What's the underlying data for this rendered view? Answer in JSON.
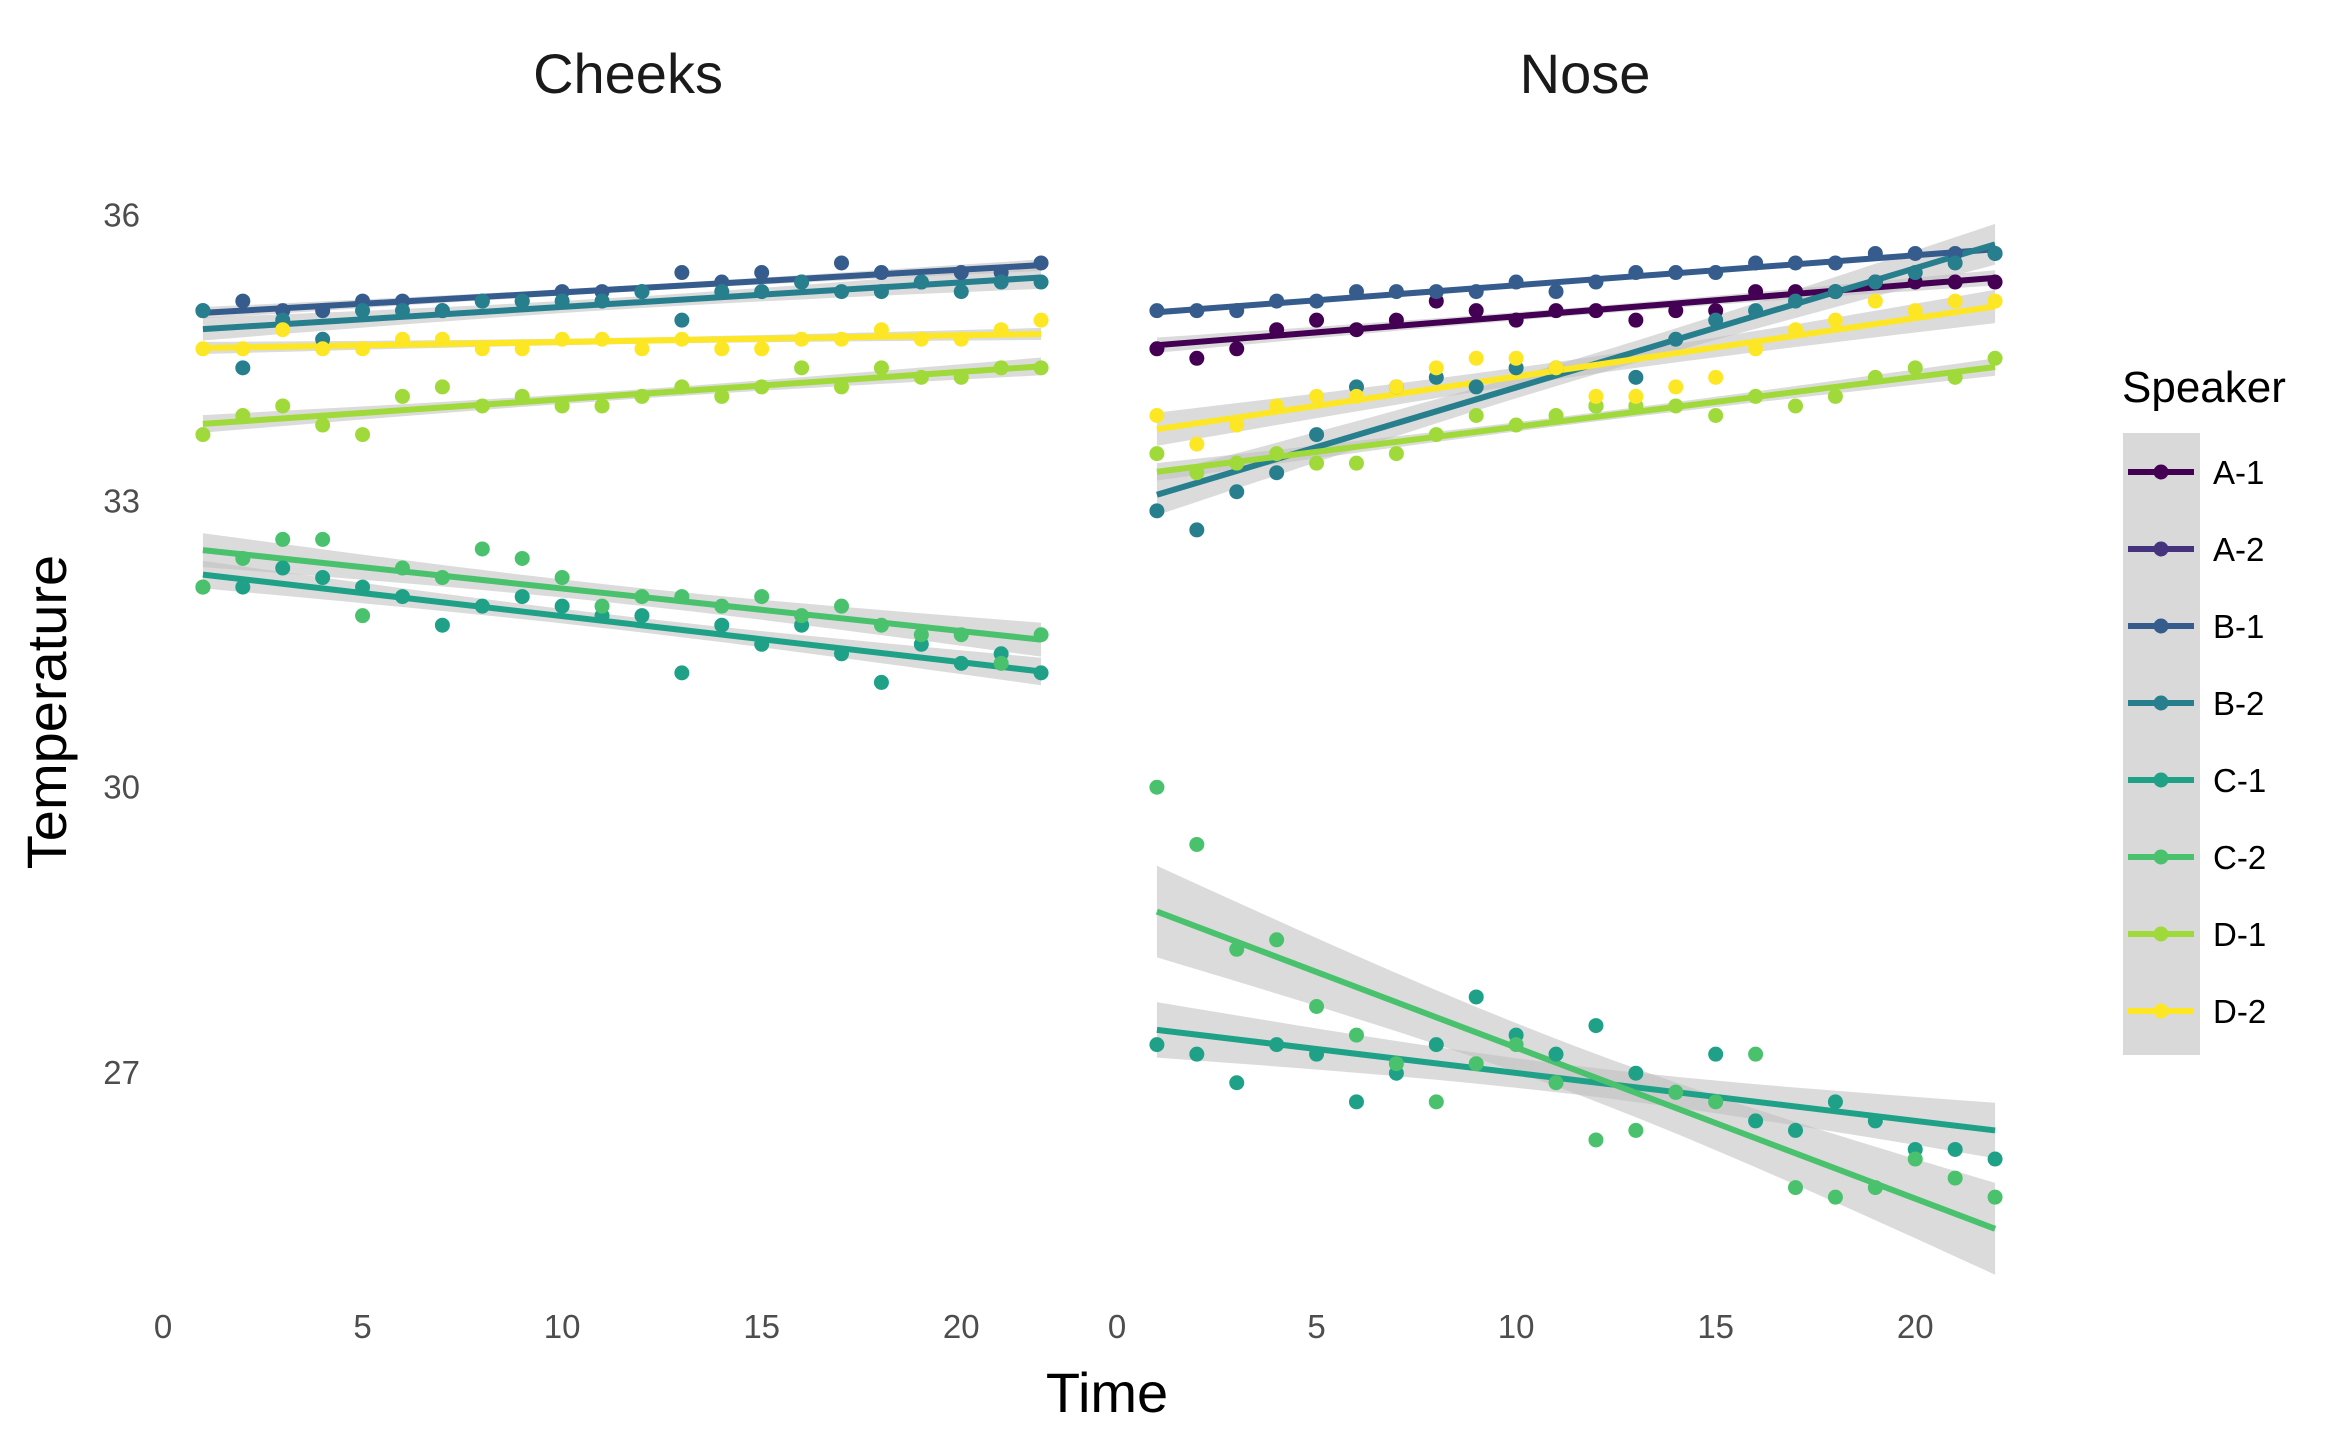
{
  "chart_data": {
    "type": "scatter",
    "facets": [
      "Cheeks",
      "Nose"
    ],
    "xlabel": "Time",
    "ylabel": "Temperature",
    "x_ticks": [
      0,
      5,
      10,
      15,
      20
    ],
    "y_ticks": [
      27,
      30,
      33,
      36
    ],
    "xlim": [
      0,
      22.8
    ],
    "ylim": [
      24.6,
      37.0
    ],
    "grid": false,
    "legend": {
      "title": "Speaker",
      "position": "right"
    },
    "trend_lines": "linear fit with shaded confidence band",
    "series": [
      {
        "name": "A-1",
        "color": "#440154",
        "panels": {
          "Nose": {
            "x": [
              1,
              2,
              3,
              4,
              5,
              6,
              7,
              8,
              9,
              10,
              11,
              12,
              13,
              14,
              15,
              16,
              17,
              18,
              19,
              20,
              21,
              22
            ],
            "y": [
              34.6,
              34.5,
              34.6,
              34.8,
              34.9,
              34.8,
              34.9,
              35.1,
              35.0,
              34.9,
              35.0,
              35.0,
              34.9,
              35.0,
              35.0,
              35.2,
              35.2,
              35.2,
              35.3,
              35.3,
              35.3,
              35.3
            ]
          }
        }
      },
      {
        "name": "A-2",
        "color": "#46337E",
        "panels": {}
      },
      {
        "name": "B-1",
        "color": "#365C8D",
        "panels": {
          "Cheeks": {
            "x": [
              1,
              2,
              3,
              4,
              5,
              6,
              7,
              8,
              9,
              10,
              11,
              12,
              13,
              14,
              15,
              16,
              17,
              18,
              19,
              20,
              21,
              22
            ],
            "y": [
              35.0,
              35.1,
              35.0,
              35.0,
              35.1,
              35.1,
              35.0,
              35.1,
              35.1,
              35.2,
              35.2,
              35.2,
              35.4,
              35.3,
              35.4,
              35.3,
              35.5,
              35.4,
              35.3,
              35.4,
              35.4,
              35.5
            ]
          },
          "Nose": {
            "x": [
              1,
              2,
              3,
              4,
              5,
              6,
              7,
              8,
              9,
              10,
              11,
              12,
              13,
              14,
              15,
              16,
              17,
              18,
              19,
              20,
              21,
              22
            ],
            "y": [
              35.0,
              35.0,
              35.0,
              35.1,
              35.1,
              35.2,
              35.2,
              35.2,
              35.2,
              35.3,
              35.2,
              35.3,
              35.4,
              35.4,
              35.4,
              35.5,
              35.5,
              35.5,
              35.6,
              35.6,
              35.6,
              35.6
            ]
          }
        }
      },
      {
        "name": "B-2",
        "color": "#277F8E",
        "panels": {
          "Cheeks": {
            "x": [
              1,
              2,
              3,
              4,
              5,
              6,
              7,
              8,
              9,
              10,
              11,
              12,
              13,
              14,
              15,
              16,
              17,
              18,
              19,
              20,
              21,
              22
            ],
            "y": [
              35.0,
              34.4,
              34.9,
              34.7,
              35.0,
              35.0,
              35.0,
              35.1,
              35.1,
              35.1,
              35.1,
              35.2,
              34.9,
              35.2,
              35.2,
              35.3,
              35.2,
              35.2,
              35.3,
              35.2,
              35.3,
              35.3
            ]
          },
          "Nose": {
            "x": [
              1,
              2,
              3,
              4,
              5,
              6,
              7,
              8,
              9,
              10,
              11,
              12,
              13,
              14,
              15,
              16,
              17,
              18,
              19,
              20,
              21,
              22
            ],
            "y": [
              32.9,
              32.7,
              33.1,
              33.3,
              33.7,
              34.2,
              34.2,
              34.3,
              34.2,
              34.4,
              34.4,
              34.0,
              34.3,
              34.7,
              34.9,
              35.0,
              35.1,
              35.2,
              35.3,
              35.4,
              35.5,
              35.6
            ]
          }
        }
      },
      {
        "name": "C-1",
        "color": "#1FA187",
        "panels": {
          "Cheeks": {
            "x": [
              1,
              2,
              3,
              4,
              5,
              6,
              7,
              8,
              9,
              10,
              11,
              12,
              13,
              14,
              15,
              16,
              17,
              18,
              19,
              20,
              21,
              22
            ],
            "y": [
              32.1,
              32.1,
              32.3,
              32.2,
              32.1,
              32.0,
              31.7,
              31.9,
              32.0,
              31.9,
              31.8,
              31.8,
              31.2,
              31.7,
              31.5,
              31.7,
              31.4,
              31.1,
              31.5,
              31.3,
              31.4,
              31.2
            ]
          },
          "Nose": {
            "x": [
              1,
              2,
              3,
              4,
              5,
              6,
              7,
              8,
              9,
              10,
              11,
              12,
              13,
              14,
              15,
              16,
              17,
              18,
              19,
              20,
              21,
              22
            ],
            "y": [
              27.3,
              27.2,
              26.9,
              27.3,
              27.2,
              26.7,
              27.0,
              27.3,
              27.8,
              27.4,
              27.2,
              27.5,
              27.0,
              26.8,
              27.2,
              26.5,
              26.4,
              26.7,
              26.5,
              26.2,
              26.2,
              26.1
            ]
          }
        }
      },
      {
        "name": "C-2",
        "color": "#4AC16D",
        "panels": {
          "Cheeks": {
            "x": [
              1,
              2,
              3,
              4,
              5,
              6,
              7,
              8,
              9,
              10,
              11,
              12,
              13,
              14,
              15,
              16,
              17,
              18,
              19,
              20,
              21,
              22
            ],
            "y": [
              32.1,
              32.4,
              32.6,
              32.6,
              31.8,
              32.3,
              32.2,
              32.5,
              32.4,
              32.2,
              31.9,
              32.0,
              32.0,
              31.9,
              32.0,
              31.8,
              31.9,
              31.7,
              31.6,
              31.6,
              31.3,
              31.6
            ]
          },
          "Nose": {
            "x": [
              1,
              2,
              3,
              4,
              5,
              6,
              7,
              8,
              9,
              10,
              11,
              12,
              13,
              14,
              15,
              16,
              17,
              18,
              19,
              20,
              21,
              22
            ],
            "y": [
              30.0,
              29.4,
              28.3,
              28.4,
              27.7,
              27.4,
              27.1,
              26.7,
              27.1,
              27.3,
              26.9,
              26.3,
              26.4,
              26.8,
              26.7,
              27.2,
              25.8,
              25.7,
              25.8,
              26.1,
              25.9,
              25.7
            ]
          }
        }
      },
      {
        "name": "D-1",
        "color": "#9FDA3A",
        "panels": {
          "Cheeks": {
            "x": [
              1,
              2,
              3,
              4,
              5,
              6,
              7,
              8,
              9,
              10,
              11,
              12,
              13,
              14,
              15,
              16,
              17,
              18,
              19,
              20,
              21,
              22
            ],
            "y": [
              33.7,
              33.9,
              34.0,
              33.8,
              33.7,
              34.1,
              34.2,
              34.0,
              34.1,
              34.0,
              34.0,
              34.1,
              34.2,
              34.1,
              34.2,
              34.4,
              34.2,
              34.4,
              34.3,
              34.3,
              34.4,
              34.4
            ]
          },
          "Nose": {
            "x": [
              1,
              2,
              3,
              4,
              5,
              6,
              7,
              8,
              9,
              10,
              11,
              12,
              13,
              14,
              15,
              16,
              17,
              18,
              19,
              20,
              21,
              22
            ],
            "y": [
              33.5,
              33.3,
              33.4,
              33.5,
              33.4,
              33.4,
              33.5,
              33.7,
              33.9,
              33.8,
              33.9,
              34.0,
              34.0,
              34.0,
              33.9,
              34.1,
              34.0,
              34.1,
              34.3,
              34.4,
              34.3,
              34.5
            ]
          }
        }
      },
      {
        "name": "D-2",
        "color": "#FDE725",
        "panels": {
          "Cheeks": {
            "x": [
              1,
              2,
              3,
              4,
              5,
              6,
              7,
              8,
              9,
              10,
              11,
              12,
              13,
              14,
              15,
              16,
              17,
              18,
              19,
              20,
              21,
              22
            ],
            "y": [
              34.6,
              34.6,
              34.8,
              34.6,
              34.6,
              34.7,
              34.7,
              34.6,
              34.6,
              34.7,
              34.7,
              34.6,
              34.7,
              34.6,
              34.6,
              34.7,
              34.7,
              34.8,
              34.7,
              34.7,
              34.8,
              34.9
            ]
          },
          "Nose": {
            "x": [
              1,
              2,
              3,
              4,
              5,
              6,
              7,
              8,
              9,
              10,
              11,
              12,
              13,
              14,
              15,
              16,
              17,
              18,
              19,
              20,
              21,
              22
            ],
            "y": [
              33.9,
              33.6,
              33.8,
              34.0,
              34.1,
              34.1,
              34.2,
              34.4,
              34.5,
              34.5,
              34.4,
              34.1,
              34.1,
              34.2,
              34.3,
              34.6,
              34.8,
              34.9,
              35.1,
              35.0,
              35.1,
              35.1
            ]
          }
        }
      }
    ]
  }
}
